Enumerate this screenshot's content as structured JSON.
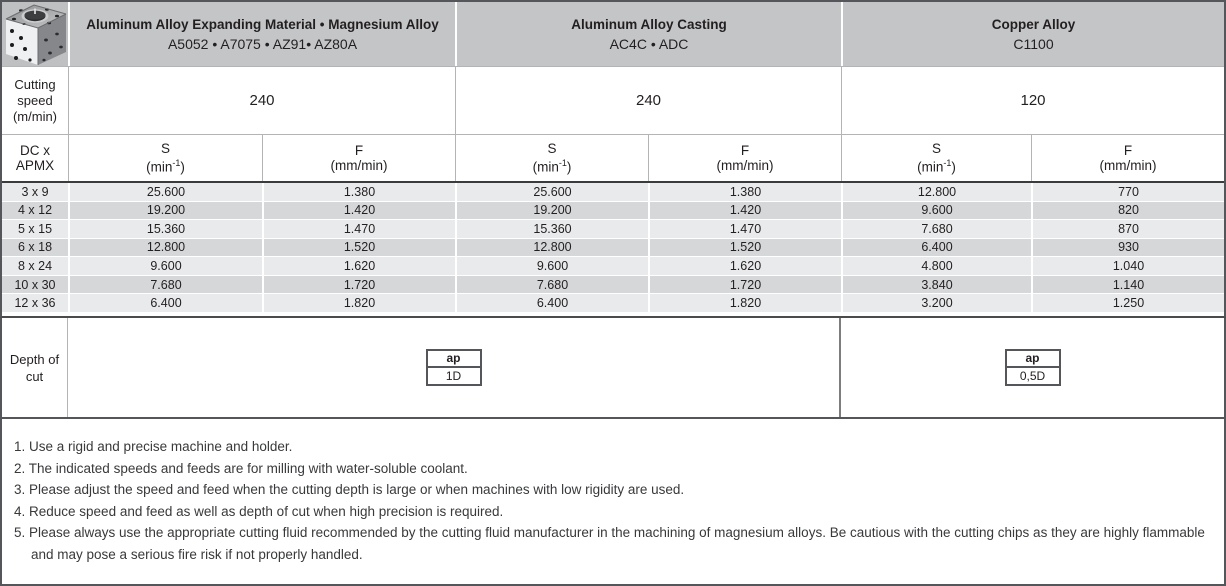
{
  "colors": {
    "header_bg": "#c4c5c7",
    "row_light": "#e9eaeb",
    "row_dark": "#d6d7d9",
    "border_dark": "#54565a",
    "grid_light": "#b2b4b6",
    "text": "#231f20"
  },
  "header": {
    "tool_image": "machined-aluminum-block-photo",
    "groups": [
      {
        "title": "Aluminum Alloy Expanding Material • Magnesium Alloy",
        "subtitle": "A5052 • A7075 • AZ91• AZ80A"
      },
      {
        "title": "Aluminum Alloy Casting",
        "subtitle": "AC4C • ADC"
      },
      {
        "title": "Copper Alloy",
        "subtitle": "C1100"
      }
    ]
  },
  "cutting_speed": {
    "label": "Cutting speed (m/min)",
    "values": [
      "240",
      "240",
      "120"
    ]
  },
  "sub_header": {
    "dc_apmx": "DC x APMX",
    "s_title": "S",
    "s_unit_open": "(min",
    "s_unit_sup": "-1",
    "s_unit_close": ")",
    "f_title": "F",
    "f_unit": "(mm/min)"
  },
  "table": {
    "rows": [
      {
        "dc": "3 x 9",
        "values": [
          "25.600",
          "1.380",
          "25.600",
          "1.380",
          "12.800",
          "770"
        ]
      },
      {
        "dc": "4 x 12",
        "values": [
          "19.200",
          "1.420",
          "19.200",
          "1.420",
          "9.600",
          "820"
        ]
      },
      {
        "dc": "5 x 15",
        "values": [
          "15.360",
          "1.470",
          "15.360",
          "1.470",
          "7.680",
          "870"
        ]
      },
      {
        "dc": "6 x 18",
        "values": [
          "12.800",
          "1.520",
          "12.800",
          "1.520",
          "6.400",
          "930"
        ]
      },
      {
        "dc": "8 x 24",
        "values": [
          "9.600",
          "1.620",
          "9.600",
          "1.620",
          "4.800",
          "1.040"
        ]
      },
      {
        "dc": "10 x 30",
        "values": [
          "7.680",
          "1.720",
          "7.680",
          "1.720",
          "3.840",
          "1.140"
        ]
      },
      {
        "dc": "12 x 36",
        "values": [
          "6.400",
          "1.820",
          "6.400",
          "1.820",
          "3.200",
          "1.250"
        ]
      }
    ]
  },
  "depth": {
    "label": "Depth of cut",
    "boxes": [
      {
        "param": "ap",
        "value": "1D"
      },
      {
        "param": "ap",
        "value": "0,5D"
      }
    ]
  },
  "notes": [
    "1. Use a rigid and precise machine and holder.",
    "2. The indicated speeds and feeds are for milling with water-soluble coolant.",
    "3. Please adjust the speed and feed when the cutting depth is large or when machines with low rigidity are used.",
    "4. Reduce speed and feed as well as depth of cut when high precision is required.",
    "5. Please always use the appropriate cutting fluid recommended by the cutting fluid manufacturer in the machining of magnesium alloys. Be cautious with the cutting chips as they are highly flammable and may pose a serious fire risk if not properly handled."
  ]
}
